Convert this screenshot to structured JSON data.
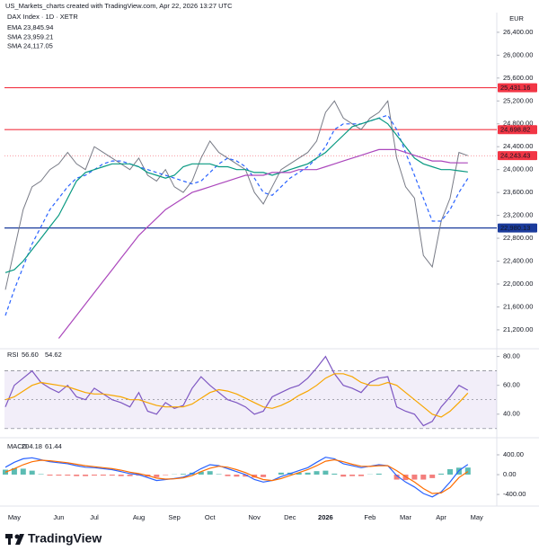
{
  "header": {
    "attribution": "US_Markets_charts created with TradingView.com, Apr 22, 2026 13:27 UTC",
    "currency": "EUR"
  },
  "footer": {
    "brand": "TradingView"
  },
  "chart_data": [
    {
      "type": "line",
      "title": "DAX Index · 1D · XETR",
      "categories": [
        null,
        "May",
        null,
        null,
        null,
        null,
        "Jun",
        null,
        null,
        null,
        "Jul",
        null,
        null,
        null,
        null,
        "Aug",
        null,
        null,
        null,
        "Sep",
        null,
        null,
        null,
        "Oct",
        null,
        null,
        null,
        null,
        "Nov",
        null,
        null,
        null,
        "Dec",
        null,
        null,
        null,
        "2026",
        null,
        null,
        null,
        null,
        "Feb",
        null,
        null,
        null,
        "Mar",
        null,
        null,
        null,
        "Apr",
        null,
        null,
        null,
        "May"
      ],
      "series": [
        {
          "color": "#787b86",
          "values": [
            21900,
            22600,
            23300,
            23700,
            23800,
            24000,
            24100,
            24300,
            24100,
            24000,
            24400,
            24300,
            24200,
            24100,
            24000,
            24200,
            23900,
            23800,
            24000,
            23700,
            23600,
            23800,
            24200,
            24500,
            24300,
            24200,
            24100,
            24000,
            23600,
            23400,
            23700,
            24000,
            24100,
            24200,
            24300,
            24500,
            25000,
            25200,
            24900,
            24800,
            24700,
            24900,
            25000,
            25200,
            24200,
            23700,
            23500,
            22500,
            22300,
            23100,
            23500,
            24300,
            24243.43,
            null
          ]
        },
        {
          "name": "EMA",
          "legend_value": "23,845.94",
          "color": "#2962ff",
          "dashed": true,
          "values": [
            21450,
            21900,
            22300,
            22700,
            23000,
            23300,
            23500,
            23700,
            23850,
            23900,
            24000,
            24100,
            24150,
            24150,
            24100,
            24050,
            24000,
            23950,
            23900,
            23850,
            23800,
            23750,
            23800,
            23950,
            24100,
            24200,
            24150,
            24050,
            23850,
            23600,
            23550,
            23700,
            23850,
            23950,
            24050,
            24200,
            24400,
            24700,
            24800,
            24800,
            24800,
            24850,
            24900,
            24950,
            24700,
            24300,
            23900,
            23500,
            23100,
            23100,
            23300,
            23600,
            23845.94,
            null
          ]
        },
        {
          "name": "SMA",
          "legend_value": "23,959.21",
          "color": "#089981",
          "values": [
            22200,
            22250,
            22400,
            22600,
            22800,
            23000,
            23200,
            23500,
            23800,
            23950,
            24000,
            24050,
            24100,
            24100,
            24100,
            24050,
            23950,
            23900,
            23850,
            23900,
            24050,
            24100,
            24100,
            24100,
            24050,
            24050,
            24000,
            24000,
            23950,
            23950,
            23900,
            23950,
            24000,
            24050,
            24100,
            24200,
            24300,
            24450,
            24600,
            24750,
            24800,
            24850,
            24900,
            24800,
            24600,
            24400,
            24200,
            24100,
            24050,
            24000,
            24000,
            23980,
            23959.21,
            null
          ]
        },
        {
          "name": "SMA",
          "legend_value": "24,117.05",
          "color": "#ab47bc",
          "values": [
            null,
            null,
            null,
            null,
            null,
            null,
            21050,
            21250,
            21450,
            21650,
            21850,
            22050,
            22250,
            22450,
            22650,
            22850,
            23000,
            23150,
            23300,
            23400,
            23500,
            23600,
            23650,
            23700,
            23750,
            23800,
            23850,
            23900,
            23900,
            23900,
            23950,
            23950,
            23950,
            24000,
            24000,
            24000,
            24050,
            24100,
            24150,
            24200,
            24250,
            24300,
            24350,
            24350,
            24350,
            24300,
            24250,
            24200,
            24150,
            24150,
            24120,
            24117,
            24117.05,
            null
          ]
        }
      ],
      "levels": [
        {
          "value": 25431.16,
          "label": "25,431.16",
          "color": "#f23645"
        },
        {
          "value": 24698.82,
          "label": "24,698.82",
          "color": "#f23645"
        },
        {
          "value": 24243.43,
          "label": "24,243.43",
          "color": "#f23645",
          "marker_only": true
        },
        {
          "value": 22980.13,
          "label": "22,980.13",
          "color": "#1a3b9c"
        }
      ],
      "ylim": [
        20900,
        26650
      ],
      "yticks": [
        {
          "value": 26400,
          "label": "26,400.00"
        },
        {
          "value": 26000,
          "label": "26,000.00"
        },
        {
          "value": 25600,
          "label": "25,600.00"
        },
        {
          "value": 25200,
          "label": "25,200.00"
        },
        {
          "value": 24800,
          "label": "24,800.00"
        },
        {
          "value": 24400,
          "label": "24,400.00"
        },
        {
          "value": 24000,
          "label": "24,000.00"
        },
        {
          "value": 23600,
          "label": "23,600.00"
        },
        {
          "value": 23200,
          "label": "23,200.00"
        },
        {
          "value": 22800,
          "label": "22,800.00"
        },
        {
          "value": 22400,
          "label": "22,400.00"
        },
        {
          "value": 22000,
          "label": "22,000.00"
        },
        {
          "value": 21600,
          "label": "21,600.00"
        },
        {
          "value": 21200,
          "label": "21,200.00"
        }
      ],
      "grid": false
    },
    {
      "type": "line",
      "title": "RSI",
      "series": [
        {
          "legend_value": "56.60",
          "color": "#7e57c2",
          "values": [
            45,
            60,
            65,
            70,
            62,
            58,
            55,
            60,
            52,
            50,
            58,
            54,
            50,
            48,
            45,
            55,
            42,
            40,
            48,
            44,
            46,
            58,
            66,
            60,
            55,
            50,
            48,
            45,
            40,
            42,
            52,
            55,
            58,
            60,
            65,
            72,
            80,
            68,
            60,
            58,
            55,
            62,
            65,
            66,
            45,
            42,
            40,
            32,
            35,
            45,
            52,
            60,
            56.6,
            null
          ]
        },
        {
          "legend_value": "54.62",
          "color": "#f7a600",
          "values": [
            50,
            52,
            56,
            60,
            62,
            61,
            60,
            59,
            57,
            55,
            54,
            54,
            53,
            52,
            50,
            50,
            48,
            46,
            45,
            45,
            45,
            47,
            51,
            55,
            57,
            56,
            54,
            51,
            48,
            45,
            44,
            46,
            49,
            53,
            56,
            60,
            65,
            68,
            68,
            66,
            62,
            60,
            60,
            62,
            60,
            55,
            50,
            45,
            40,
            38,
            42,
            48,
            54.62,
            null
          ]
        }
      ],
      "band": [
        30,
        70
      ],
      "midline": 50,
      "band_color": "#7e57c2",
      "ylim": [
        28,
        81
      ],
      "yticks": [
        {
          "value": 80,
          "label": "80.00"
        },
        {
          "value": 60,
          "label": "60.00"
        },
        {
          "value": 40,
          "label": "40.00"
        }
      ],
      "grid": false
    },
    {
      "type": "macd",
      "title": "MACD",
      "series": [
        {
          "type": "bar",
          "pos_color": "#26a69a",
          "neg_color": "#ef5350",
          "values": [
            100,
            130,
            120,
            80,
            10,
            -20,
            -20,
            -20,
            -30,
            -30,
            -20,
            -20,
            -20,
            -30,
            -30,
            -20,
            -40,
            -50,
            -10,
            5,
            15,
            40,
            60,
            70,
            10,
            -30,
            -40,
            -40,
            -60,
            -50,
            0,
            40,
            40,
            40,
            40,
            70,
            80,
            20,
            -40,
            -30,
            -30,
            5,
            20,
            0,
            -100,
            -110,
            -100,
            -100,
            -70,
            20,
            110,
            140,
            142.74,
            null
          ]
        },
        {
          "legend_value": "204.18",
          "color": "#2962ff",
          "values": [
            150,
            250,
            320,
            340,
            300,
            260,
            240,
            220,
            180,
            150,
            140,
            120,
            100,
            60,
            20,
            0,
            -60,
            -120,
            -100,
            -80,
            -50,
            20,
            120,
            200,
            180,
            120,
            60,
            0,
            -100,
            -150,
            -120,
            -40,
            20,
            80,
            140,
            250,
            350,
            320,
            220,
            180,
            140,
            170,
            200,
            180,
            -20,
            -150,
            -250,
            -380,
            -450,
            -350,
            -150,
            80,
            204.18,
            null
          ]
        },
        {
          "legend_value": "61.44",
          "color": "#ff6d00",
          "values": [
            50,
            120,
            200,
            260,
            290,
            280,
            260,
            240,
            210,
            180,
            160,
            140,
            120,
            90,
            50,
            20,
            -20,
            -70,
            -90,
            -85,
            -65,
            -20,
            60,
            130,
            170,
            150,
            100,
            40,
            -40,
            -100,
            -120,
            -80,
            -20,
            40,
            100,
            180,
            270,
            300,
            260,
            210,
            170,
            165,
            180,
            180,
            80,
            -40,
            -150,
            -280,
            -380,
            -370,
            -260,
            -60,
            61.44,
            null
          ]
        }
      ],
      "ylim": [
        -580,
        690
      ],
      "yticks": [
        {
          "value": 400,
          "label": "400.00"
        },
        {
          "value": 0,
          "label": "0.00"
        },
        {
          "value": -400,
          "label": "-400.00"
        }
      ],
      "grid": false
    }
  ]
}
